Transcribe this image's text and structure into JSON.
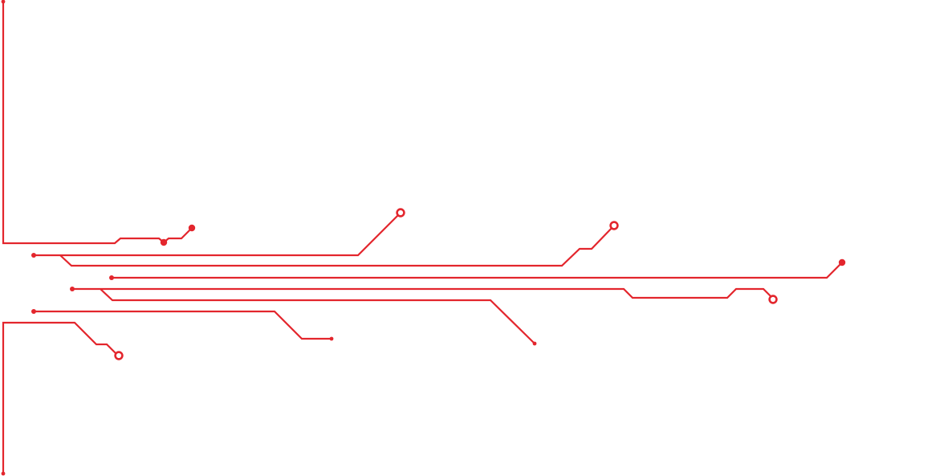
{
  "graphic": {
    "name": "circuit-trace-decoration",
    "trace_color": "#e3262d",
    "background_color": "#ffffff"
  }
}
